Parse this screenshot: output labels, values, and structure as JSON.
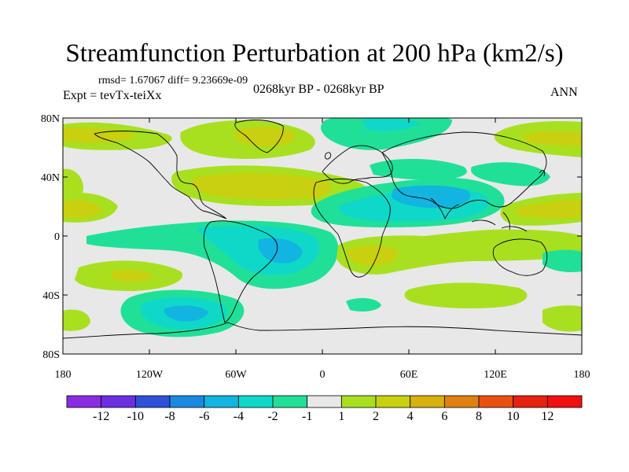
{
  "title": "Streamfunction Perturbation at 200 hPa (km2/s)",
  "stats_text": "rmsd= 1.67067 diff= 9.23669e-09",
  "experiment_text": "Expt = tevTx-teiXx",
  "period_text": "0268kyr BP - 0268kyr BP",
  "season_text": "ANN",
  "lon_ticks": [
    "180",
    "120W",
    "60W",
    "0",
    "60E",
    "120E",
    "180"
  ],
  "lat_ticks": [
    "80N",
    "40N",
    "0",
    "40S",
    "80S"
  ],
  "colorbar": {
    "labels": [
      "-12",
      "-10",
      "-8",
      "-6",
      "-4",
      "-2",
      "-1",
      "1",
      "2",
      "4",
      "6",
      "8",
      "10",
      "12"
    ],
    "colors": [
      "#8a2be2",
      "#6a30e0",
      "#3050d8",
      "#1a8ae0",
      "#12b4e0",
      "#10d8c8",
      "#20e098",
      "#e8e8e8",
      "#a8e020",
      "#c8d010",
      "#d8b010",
      "#e08010",
      "#e85010",
      "#e82010",
      "#f01010"
    ]
  },
  "colors": {
    "ocean": "#e8e8e8",
    "coast": "#000000"
  }
}
